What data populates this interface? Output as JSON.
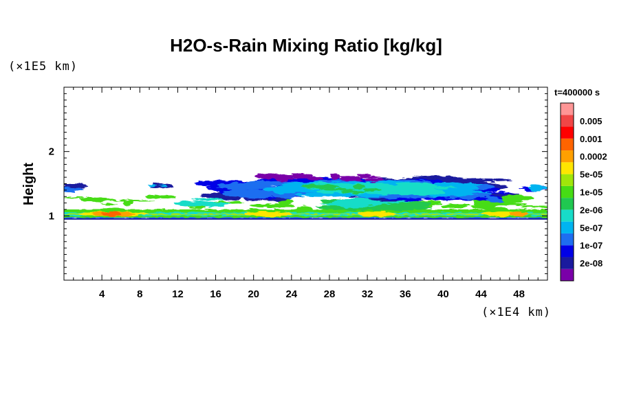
{
  "chart_data": {
    "type": "heatmap",
    "title": "H2O-s-Rain Mixing Ratio [kg/kg]",
    "ylabel": "Height",
    "y_unit": "(×1E5 km)",
    "x_unit": "(×1E4 km)",
    "time_label": "t=400000 s",
    "xlim": [
      0,
      51
    ],
    "ylim": [
      0,
      3
    ],
    "x_ticks": [
      "4",
      "8",
      "12",
      "16",
      "20",
      "24",
      "28",
      "32",
      "36",
      "40",
      "44",
      "48"
    ],
    "y_ticks": [
      "1",
      "2"
    ],
    "colorbar_labels": [
      "0.005",
      "0.001",
      "0.0002",
      "5e-05",
      "1e-05",
      "2e-06",
      "5e-07",
      "1e-07",
      "2e-08"
    ],
    "colorbar_colors": [
      "#7a00a8",
      "#1a1a9e",
      "#0000e6",
      "#1e6ef0",
      "#00b4f0",
      "#18dcc8",
      "#20c850",
      "#46dc14",
      "#a0e60a",
      "#ffe600",
      "#ffa000",
      "#ff6400",
      "#ff0000",
      "#f04646",
      "#ff9696"
    ],
    "regions": [
      {
        "name": "lower-band",
        "x0": 0,
        "x1": 51,
        "y0": 0.95,
        "y1": 1.1,
        "level": "2e-06 to 0.0002"
      },
      {
        "name": "upper-cloud",
        "x0": 15.5,
        "x1": 51,
        "y0": 1.2,
        "y1": 1.65,
        "level": "2e-08 to 5e-06"
      }
    ]
  }
}
